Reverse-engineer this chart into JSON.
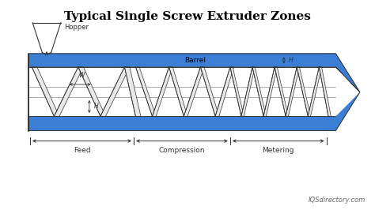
{
  "title": "Typical Single Screw Extruder Zones",
  "title_fontsize": 11,
  "title_font": "serif",
  "bg_color": "#ffffff",
  "blue_color": "#3a7fd5",
  "dark": "#333333",
  "grey": "#888888",
  "cream": "#f8f8f8",
  "watermark": "IQSdirectory.com",
  "zones": [
    "Feed",
    "Compression",
    "Metering"
  ],
  "zone_boundaries": [
    0.075,
    0.355,
    0.615,
    0.875
  ]
}
